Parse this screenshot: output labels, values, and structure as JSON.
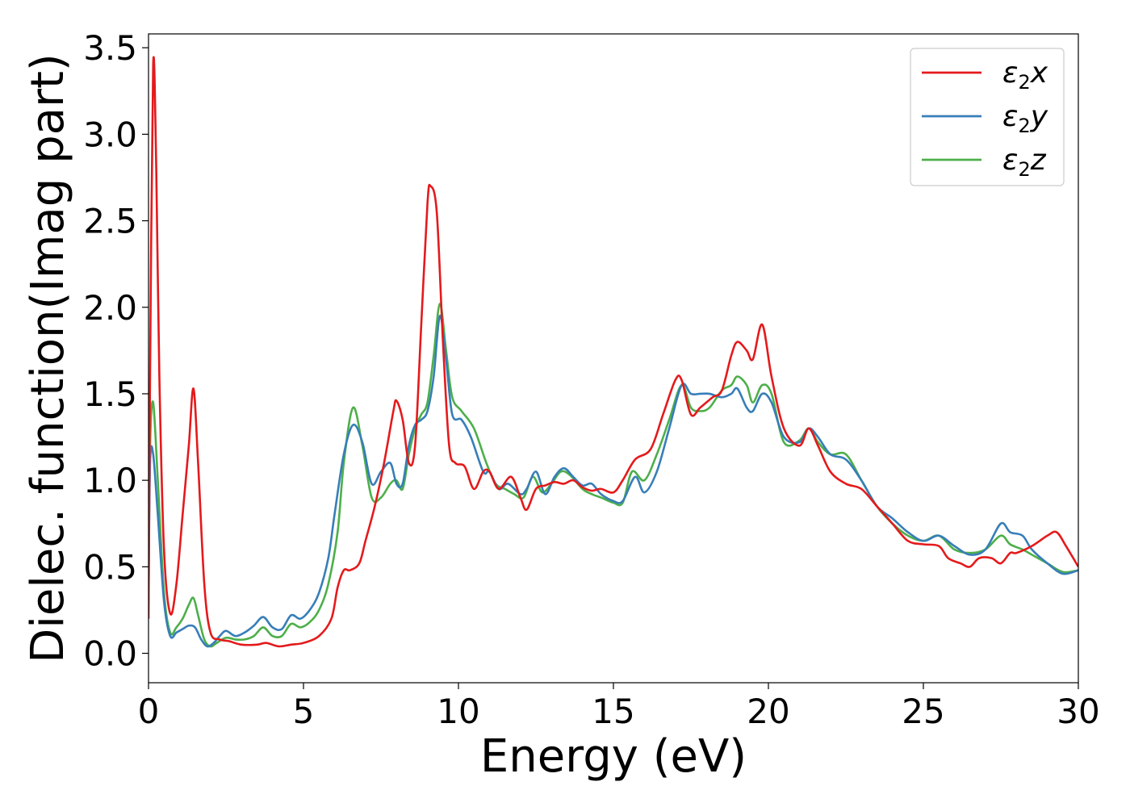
{
  "chart_data": {
    "type": "line",
    "xlabel": "Energy (eV)",
    "ylabel": "Dielec. function(Imag part)",
    "xlim": [
      0,
      30
    ],
    "ylim": [
      -0.17,
      3.58
    ],
    "xticks": [
      0,
      5,
      10,
      15,
      20,
      25,
      30
    ],
    "xtick_labels": [
      "0",
      "5",
      "10",
      "15",
      "20",
      "25",
      "30"
    ],
    "yticks": [
      0.0,
      0.5,
      1.0,
      1.5,
      2.0,
      2.5,
      3.0,
      3.5
    ],
    "ytick_labels": [
      "0.0",
      "0.5",
      "1.0",
      "1.5",
      "2.0",
      "2.5",
      "3.0",
      "3.5"
    ],
    "grid": false,
    "legend_position": "top-right",
    "series": [
      {
        "name": "ε₂x",
        "legend_main": "ε",
        "legend_sub": "2",
        "legend_tail": "x",
        "color": "#e41a1c",
        "x": [
          0,
          0.05,
          0.15,
          0.25,
          0.35,
          0.5,
          0.7,
          0.9,
          1.1,
          1.3,
          1.45,
          1.6,
          1.8,
          2.0,
          2.3,
          2.6,
          3.0,
          3.5,
          3.8,
          4.2,
          4.6,
          5.0,
          5.5,
          5.9,
          6.1,
          6.3,
          6.5,
          6.8,
          7.0,
          7.3,
          7.6,
          7.9,
          8.0,
          8.2,
          8.4,
          8.6,
          8.8,
          9.0,
          9.1,
          9.3,
          9.5,
          9.7,
          9.9,
          10.2,
          10.5,
          10.8,
          11.0,
          11.3,
          11.7,
          12.0,
          12.2,
          12.5,
          12.8,
          13.1,
          13.4,
          13.7,
          14.0,
          14.3,
          14.6,
          15.0,
          15.3,
          15.7,
          16.2,
          16.6,
          17.0,
          17.2,
          17.5,
          17.8,
          18.2,
          18.5,
          18.8,
          19.0,
          19.3,
          19.5,
          19.8,
          20.1,
          20.5,
          21.0,
          21.3,
          21.6,
          22.0,
          22.5,
          23.0,
          23.5,
          24.0,
          24.5,
          25.0,
          25.5,
          25.8,
          26.2,
          26.5,
          26.8,
          27.2,
          27.5,
          27.8,
          28.0,
          28.5,
          29.0,
          29.3,
          29.6,
          30.0
        ],
        "y": [
          0.2,
          1.6,
          3.4,
          2.8,
          1.6,
          0.6,
          0.23,
          0.4,
          0.8,
          1.2,
          1.53,
          1.1,
          0.4,
          0.12,
          0.08,
          0.07,
          0.05,
          0.05,
          0.06,
          0.04,
          0.05,
          0.06,
          0.1,
          0.2,
          0.38,
          0.48,
          0.48,
          0.52,
          0.65,
          0.85,
          1.1,
          1.4,
          1.46,
          1.35,
          1.1,
          1.2,
          1.9,
          2.6,
          2.7,
          2.55,
          1.8,
          1.2,
          1.1,
          1.08,
          0.95,
          1.05,
          1.05,
          0.95,
          1.02,
          0.9,
          0.83,
          0.95,
          0.97,
          0.99,
          0.98,
          1.0,
          0.96,
          0.94,
          0.95,
          0.93,
          1.0,
          1.12,
          1.18,
          1.38,
          1.58,
          1.58,
          1.38,
          1.42,
          1.48,
          1.52,
          1.72,
          1.8,
          1.75,
          1.7,
          1.9,
          1.6,
          1.3,
          1.2,
          1.3,
          1.2,
          1.05,
          0.98,
          0.95,
          0.85,
          0.75,
          0.65,
          0.63,
          0.62,
          0.55,
          0.52,
          0.5,
          0.55,
          0.55,
          0.52,
          0.58,
          0.58,
          0.62,
          0.68,
          0.7,
          0.62,
          0.5
        ]
      },
      {
        "name": "ε₂y",
        "legend_main": "ε",
        "legend_sub": "2",
        "legend_tail": "y",
        "color": "#377eb8",
        "x": [
          0,
          0.05,
          0.15,
          0.3,
          0.5,
          0.7,
          0.9,
          1.1,
          1.3,
          1.5,
          1.7,
          1.9,
          2.1,
          2.3,
          2.5,
          2.8,
          3.1,
          3.4,
          3.7,
          4.0,
          4.3,
          4.6,
          4.9,
          5.2,
          5.5,
          5.8,
          6.0,
          6.3,
          6.6,
          6.9,
          7.2,
          7.5,
          7.8,
          8.0,
          8.2,
          8.4,
          8.6,
          8.8,
          9.0,
          9.2,
          9.4,
          9.6,
          9.8,
          10.1,
          10.4,
          10.8,
          11.0,
          11.3,
          11.6,
          12.0,
          12.2,
          12.5,
          12.8,
          13.1,
          13.4,
          13.7,
          14.0,
          14.3,
          14.6,
          15.0,
          15.3,
          15.7,
          16.0,
          16.4,
          16.8,
          17.2,
          17.5,
          17.8,
          18.1,
          18.5,
          18.8,
          19.0,
          19.3,
          19.5,
          19.8,
          20.1,
          20.5,
          21.0,
          21.3,
          21.6,
          22.0,
          22.5,
          23.0,
          23.5,
          24.0,
          24.5,
          25.0,
          25.5,
          26.0,
          26.5,
          27.0,
          27.5,
          27.8,
          28.2,
          28.5,
          29.0,
          29.5,
          30.0
        ],
        "y": [
          0.3,
          1.1,
          1.15,
          0.8,
          0.3,
          0.1,
          0.12,
          0.14,
          0.16,
          0.15,
          0.08,
          0.04,
          0.06,
          0.1,
          0.13,
          0.1,
          0.12,
          0.16,
          0.21,
          0.15,
          0.14,
          0.22,
          0.2,
          0.25,
          0.35,
          0.55,
          0.8,
          1.15,
          1.32,
          1.22,
          0.98,
          1.05,
          1.1,
          0.98,
          0.98,
          1.2,
          1.32,
          1.35,
          1.4,
          1.6,
          1.95,
          1.7,
          1.38,
          1.35,
          1.25,
          1.05,
          1.05,
          0.95,
          0.98,
          0.92,
          0.95,
          1.05,
          0.92,
          1.02,
          1.07,
          1.02,
          0.97,
          0.98,
          0.92,
          0.88,
          0.88,
          1.02,
          0.93,
          1.05,
          1.3,
          1.55,
          1.5,
          1.5,
          1.5,
          1.48,
          1.5,
          1.53,
          1.42,
          1.4,
          1.5,
          1.45,
          1.25,
          1.22,
          1.3,
          1.25,
          1.15,
          1.12,
          1.0,
          0.85,
          0.78,
          0.7,
          0.65,
          0.68,
          0.62,
          0.57,
          0.6,
          0.75,
          0.7,
          0.68,
          0.6,
          0.52,
          0.46,
          0.48
        ]
      },
      {
        "name": "ε₂z",
        "legend_main": "ε",
        "legend_sub": "2",
        "legend_tail": "z",
        "color": "#4daf4a",
        "x": [
          0,
          0.05,
          0.15,
          0.3,
          0.5,
          0.7,
          0.9,
          1.1,
          1.3,
          1.45,
          1.6,
          1.8,
          2.0,
          2.2,
          2.5,
          2.8,
          3.1,
          3.4,
          3.7,
          4.0,
          4.3,
          4.6,
          4.9,
          5.2,
          5.5,
          5.8,
          6.1,
          6.3,
          6.6,
          6.9,
          7.2,
          7.5,
          7.8,
          8.0,
          8.2,
          8.4,
          8.6,
          8.8,
          9.0,
          9.2,
          9.4,
          9.6,
          9.8,
          10.1,
          10.5,
          10.9,
          11.2,
          11.5,
          11.8,
          12.1,
          12.4,
          12.7,
          13.0,
          13.3,
          13.6,
          14.0,
          14.3,
          14.6,
          15.0,
          15.3,
          15.6,
          16.0,
          16.4,
          16.8,
          17.2,
          17.5,
          17.8,
          18.1,
          18.5,
          18.8,
          19.0,
          19.3,
          19.5,
          19.8,
          20.1,
          20.5,
          21.0,
          21.3,
          21.6,
          22.0,
          22.5,
          23.0,
          23.5,
          24.0,
          24.5,
          25.0,
          25.5,
          26.0,
          26.5,
          27.0,
          27.5,
          27.8,
          28.2,
          28.5,
          29.0,
          29.5,
          30.0
        ],
        "y": [
          0.4,
          1.2,
          1.45,
          1.0,
          0.35,
          0.12,
          0.15,
          0.2,
          0.28,
          0.32,
          0.22,
          0.08,
          0.04,
          0.06,
          0.09,
          0.08,
          0.08,
          0.1,
          0.15,
          0.1,
          0.1,
          0.17,
          0.15,
          0.18,
          0.25,
          0.4,
          0.7,
          1.1,
          1.42,
          1.2,
          0.9,
          0.9,
          0.98,
          1.0,
          0.95,
          1.15,
          1.3,
          1.38,
          1.45,
          1.72,
          2.02,
          1.75,
          1.48,
          1.4,
          1.3,
          1.1,
          0.98,
          0.95,
          0.92,
          0.9,
          1.02,
          0.93,
          0.98,
          1.05,
          1.03,
          0.95,
          0.92,
          0.9,
          0.87,
          0.87,
          1.05,
          1.0,
          1.15,
          1.35,
          1.55,
          1.42,
          1.4,
          1.42,
          1.52,
          1.55,
          1.6,
          1.55,
          1.45,
          1.55,
          1.5,
          1.22,
          1.23,
          1.3,
          1.22,
          1.15,
          1.15,
          1.0,
          0.85,
          0.75,
          0.68,
          0.65,
          0.68,
          0.6,
          0.58,
          0.6,
          0.68,
          0.63,
          0.6,
          0.57,
          0.52,
          0.47,
          0.48
        ]
      }
    ]
  }
}
